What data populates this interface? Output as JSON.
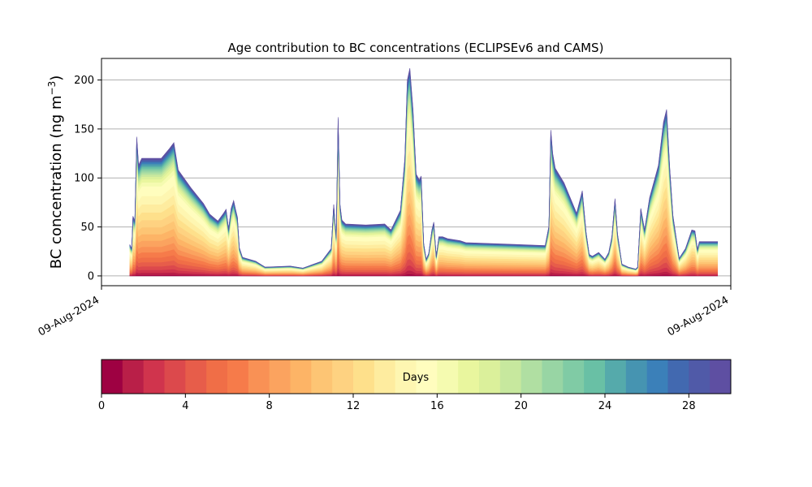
{
  "chart_data": {
    "type": "area",
    "title": "Age contribution to BC concentrations (ECLIPSEv6 and CAMS)",
    "ylabel_main": "BC concentration (ng m",
    "ylabel_sup": "−3",
    "ylabel_close": ")",
    "xlabel": "",
    "x_ticks": [
      "09-Aug-2024",
      "09-Aug-2024"
    ],
    "xlim": [
      0,
      100
    ],
    "ylim": [
      -10,
      222
    ],
    "y_ticks": [
      0,
      50,
      100,
      150,
      200
    ],
    "grid": "horizontal",
    "x": [
      4.5,
      4.8,
      5.0,
      5.3,
      5.6,
      5.9,
      6.1,
      6.4,
      7.5,
      9.5,
      10.8,
      11.5,
      12.2,
      14.2,
      16.2,
      17.2,
      18.5,
      19.4,
      19.8,
      20.2,
      20.6,
      21.0,
      21.3,
      21.6,
      21.9,
      22.4,
      24.5,
      26.0,
      30.0,
      32.0,
      35.0,
      36.5,
      36.9,
      37.3,
      37.6,
      37.9,
      38.2,
      38.5,
      38.8,
      42.0,
      45.0,
      46.0,
      47.5,
      48.2,
      48.6,
      49.0,
      49.5,
      50.0,
      50.5,
      50.8,
      51.2,
      51.6,
      52.0,
      52.5,
      52.8,
      53.2,
      53.6,
      54.2,
      55.0,
      56.0,
      57.0,
      57.9,
      70.5,
      71.1,
      71.4,
      71.7,
      72.1,
      73.5,
      75.5,
      76.4,
      77.0,
      77.5,
      78.0,
      79.0,
      80.0,
      80.6,
      81.1,
      81.6,
      82.0,
      82.7,
      83.7,
      84.3,
      84.9,
      85.2,
      85.7,
      86.3,
      87.1,
      88.5,
      89.3,
      89.8,
      90.3,
      90.8,
      91.8,
      92.8,
      93.8,
      94.3,
      94.7,
      95.0,
      95.6,
      96.3,
      96.9,
      97.3,
      97.6,
      97.9
    ],
    "total": [
      32,
      28,
      61,
      56,
      142,
      113,
      116,
      120,
      120,
      120,
      130,
      136,
      108,
      90,
      74,
      63,
      56,
      64,
      68,
      48,
      69,
      77,
      68,
      60,
      29,
      19,
      15,
      9,
      10,
      8,
      15,
      28,
      73,
      40,
      162,
      73,
      57,
      55,
      53,
      52,
      53,
      47,
      67,
      120,
      200,
      212,
      170,
      104,
      98,
      102,
      33,
      17,
      23,
      47,
      55,
      20,
      40,
      40,
      38,
      37,
      36,
      34,
      31,
      51,
      149,
      125,
      110,
      95,
      64,
      87,
      45,
      22,
      20,
      24,
      17,
      24,
      40,
      79,
      43,
      12,
      9,
      8,
      7,
      9,
      69,
      47,
      80,
      113,
      157,
      170,
      110,
      62,
      18,
      28,
      47,
      46,
      27,
      35,
      35,
      35,
      35,
      35,
      35,
      35
    ],
    "base_fraction": 0.68,
    "colorbar": {
      "label": "Days",
      "ticks": [
        0,
        4,
        8,
        12,
        16,
        20,
        24,
        28
      ],
      "range": [
        0,
        30
      ],
      "colors": [
        "#9e0142",
        "#b91f48",
        "#d0344d",
        "#dc494c",
        "#e75d4a",
        "#f06e47",
        "#f67b4a",
        "#f99155",
        "#fba35f",
        "#fdb466",
        "#fdc574",
        "#fed281",
        "#fee08b",
        "#feec9f",
        "#fef6b1",
        "#fffdbe",
        "#f5fbb0",
        "#e9f69e",
        "#dbf09b",
        "#c7e89e",
        "#b0dfa2",
        "#98d5a4",
        "#80cba5",
        "#69c0a5",
        "#55aaab",
        "#4694b1",
        "#3b80b9",
        "#4269b0",
        "#505aa8",
        "#5e4fa2"
      ]
    }
  }
}
